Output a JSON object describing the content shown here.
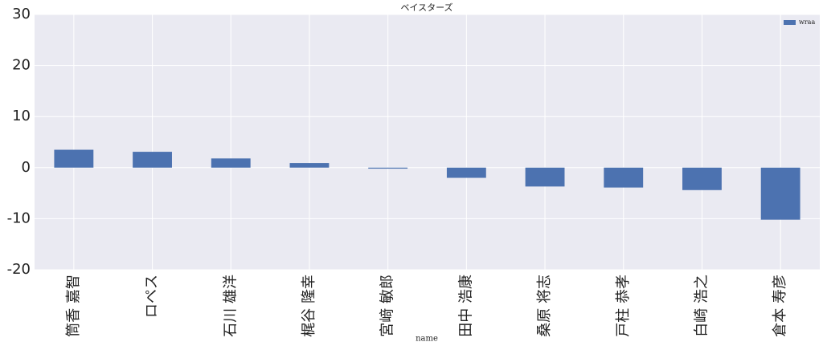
{
  "chart_data": {
    "type": "bar",
    "title": "ベイスターズ",
    "x_label": "name",
    "categories": [
      "筒香 嘉智",
      "ロペス",
      "石川 雄洋",
      "梶谷 隆幸",
      "宮﨑 敏郎",
      "田中 浩康",
      "桑原 将志",
      "戸柱 恭孝",
      "白崎 浩之",
      "倉本 寿彦"
    ],
    "series": [
      {
        "name": "wraa",
        "color": "#4c72b0",
        "values": [
          3.5,
          3.1,
          1.8,
          0.9,
          -0.2,
          -2.0,
          -3.7,
          -3.9,
          -4.4,
          -10.2
        ]
      }
    ],
    "ylim": [
      -20,
      30
    ],
    "yticks": [
      -20,
      -10,
      0,
      10,
      20,
      30
    ],
    "grid": true,
    "legend": "upper right"
  }
}
